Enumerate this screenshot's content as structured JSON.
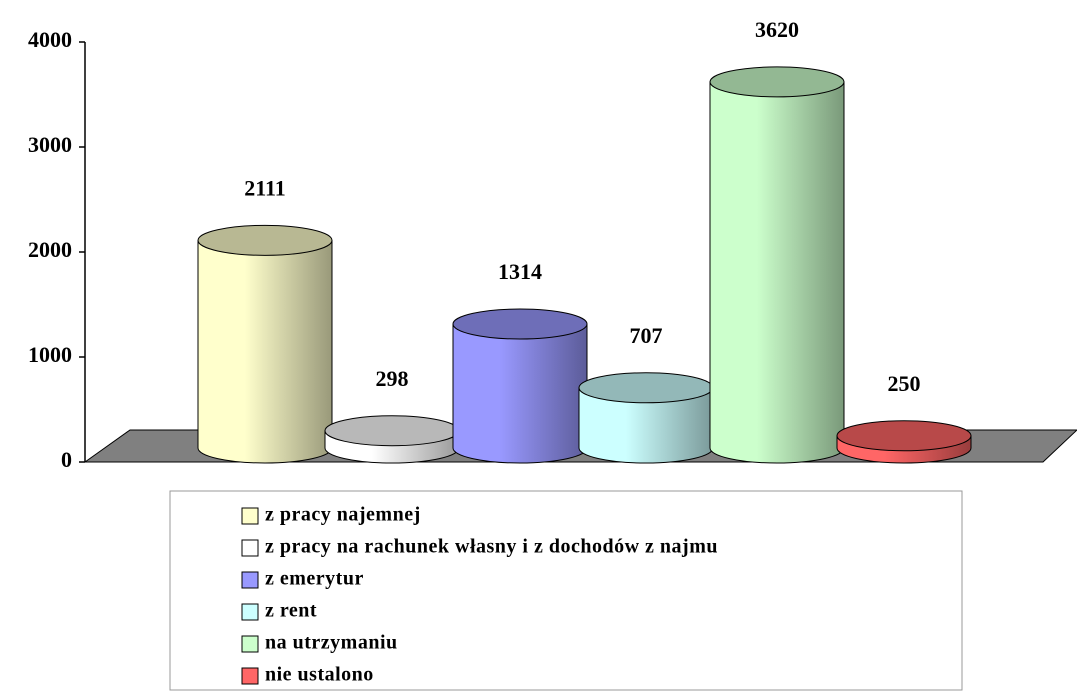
{
  "chart_data": {
    "type": "bar",
    "categories": [
      "z pracy najemnej",
      "z pracy na rachunek własny i z dochodów z najmu",
      "z emerytur",
      "z rent",
      "na utrzymaniu",
      "nie ustalono"
    ],
    "values": [
      2111,
      298,
      1314,
      707,
      3620,
      250
    ],
    "colors": [
      "#ffffcc",
      "#ffffff",
      "#9999ff",
      "#ccffff",
      "#ccffcc",
      "#ff6666"
    ],
    "ylim": [
      0,
      4000
    ],
    "yticks": [
      0,
      1000,
      2000,
      3000,
      4000
    ],
    "legend": "bottom"
  }
}
